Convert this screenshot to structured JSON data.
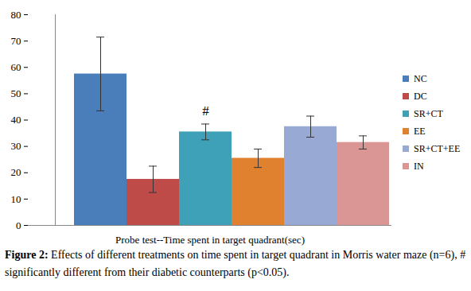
{
  "chart_data": {
    "type": "bar",
    "categories": [
      "NC",
      "DC",
      "SR+CT",
      "EE",
      "SR+CT+EE",
      "IN"
    ],
    "values": [
      57.5,
      17.5,
      35.5,
      25.5,
      37.5,
      31.5
    ],
    "errors": [
      14,
      5,
      3,
      3.5,
      4,
      2.5
    ],
    "colors": [
      "#4a7ebb",
      "#be4b48",
      "#3fa1b7",
      "#e0812f",
      "#98aad4",
      "#d99694"
    ],
    "xlabel": "Probe test--Time spent in target quadrant(sec)",
    "ylim": [
      0,
      80
    ],
    "yticks": [
      0,
      10,
      20,
      30,
      40,
      50,
      60,
      70,
      80
    ],
    "grid": false,
    "legend": "right",
    "tick_labels": "y",
    "annotations": [
      {
        "text": "#",
        "category": "SR+CT"
      }
    ],
    "caption": "Figure 2: Effects of different treatments on time spent in target quadrant in Morris water maze (n=6), # significantly different from their diabetic counterparts (p<0.05)."
  }
}
